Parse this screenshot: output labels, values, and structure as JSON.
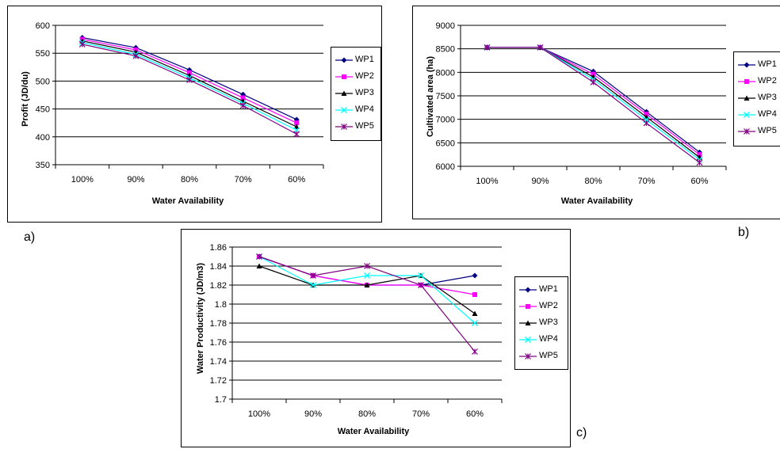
{
  "panel_labels": {
    "a": "a)",
    "b": "b)",
    "c": "c)"
  },
  "series_styles": [
    {
      "name": "WP1",
      "color": "#000080",
      "marker": "diamond"
    },
    {
      "name": "WP2",
      "color": "#FF00FF",
      "marker": "square"
    },
    {
      "name": "WP3",
      "color": "#000000",
      "marker": "triangle"
    },
    {
      "name": "WP4",
      "color": "#00FFFF",
      "marker": "x"
    },
    {
      "name": "WP5",
      "color": "#800080",
      "marker": "star"
    }
  ],
  "chart_data": [
    {
      "id": "a",
      "type": "line",
      "title": "",
      "xlabel": "Water Availability",
      "ylabel": "Profit (JD/du)",
      "categories": [
        "100%",
        "90%",
        "80%",
        "70%",
        "60%"
      ],
      "ylim": [
        350,
        600
      ],
      "yticks": [
        350,
        400,
        450,
        500,
        550,
        600
      ],
      "ytick_labels": [
        "350",
        "400",
        "450",
        "500",
        "550",
        "600"
      ],
      "grid": true,
      "legend": "right",
      "series": [
        {
          "name": "WP1",
          "values": [
            578,
            560,
            520,
            476,
            431
          ]
        },
        {
          "name": "WP2",
          "values": [
            575,
            556,
            515,
            470,
            425
          ]
        },
        {
          "name": "WP3",
          "values": [
            572,
            552,
            510,
            464,
            418
          ]
        },
        {
          "name": "WP4",
          "values": [
            569,
            548,
            506,
            460,
            412
          ]
        },
        {
          "name": "WP5",
          "values": [
            566,
            545,
            502,
            456,
            405
          ]
        }
      ]
    },
    {
      "id": "b",
      "type": "line",
      "title": "",
      "xlabel": "Water Availability",
      "ylabel": "Cultivated area (ha)",
      "categories": [
        "100%",
        "90%",
        "80%",
        "70%",
        "60%"
      ],
      "ylim": [
        6000,
        9000
      ],
      "yticks": [
        6000,
        6500,
        7000,
        7500,
        8000,
        8500,
        9000
      ],
      "ytick_labels": [
        "6000",
        "6500",
        "7000",
        "7500",
        "8000",
        "8500",
        "9000"
      ],
      "grid": true,
      "legend": "right",
      "series": [
        {
          "name": "WP1",
          "values": [
            8530,
            8530,
            8020,
            7160,
            6300
          ]
        },
        {
          "name": "WP2",
          "values": [
            8530,
            8530,
            7960,
            7110,
            6250
          ]
        },
        {
          "name": "WP3",
          "values": [
            8530,
            8530,
            7900,
            7050,
            6190
          ]
        },
        {
          "name": "WP4",
          "values": [
            8530,
            8530,
            7850,
            6990,
            6140
          ]
        },
        {
          "name": "WP5",
          "values": [
            8530,
            8530,
            7790,
            6920,
            6080
          ]
        }
      ]
    },
    {
      "id": "c",
      "type": "line",
      "title": "",
      "xlabel": "Water Availability",
      "ylabel": "Water Productivity (JD/m3)",
      "categories": [
        "100%",
        "90%",
        "80%",
        "70%",
        "60%"
      ],
      "ylim": [
        1.7,
        1.86
      ],
      "yticks": [
        1.7,
        1.72,
        1.74,
        1.76,
        1.78,
        1.8,
        1.82,
        1.84,
        1.86
      ],
      "ytick_labels": [
        "1.7",
        "1.72",
        "1.74",
        "1.76",
        "1.78",
        "1.8",
        "1.82",
        "1.84",
        "1.86"
      ],
      "grid": true,
      "legend": "right",
      "series": [
        {
          "name": "WP1",
          "values": [
            1.85,
            1.83,
            1.82,
            1.82,
            1.83
          ]
        },
        {
          "name": "WP2",
          "values": [
            1.85,
            1.83,
            1.82,
            1.82,
            1.81
          ]
        },
        {
          "name": "WP3",
          "values": [
            1.84,
            1.82,
            1.82,
            1.83,
            1.79
          ]
        },
        {
          "name": "WP4",
          "values": [
            1.85,
            1.82,
            1.83,
            1.83,
            1.78
          ]
        },
        {
          "name": "WP5",
          "values": [
            1.85,
            1.83,
            1.84,
            1.82,
            1.75
          ]
        }
      ]
    }
  ]
}
